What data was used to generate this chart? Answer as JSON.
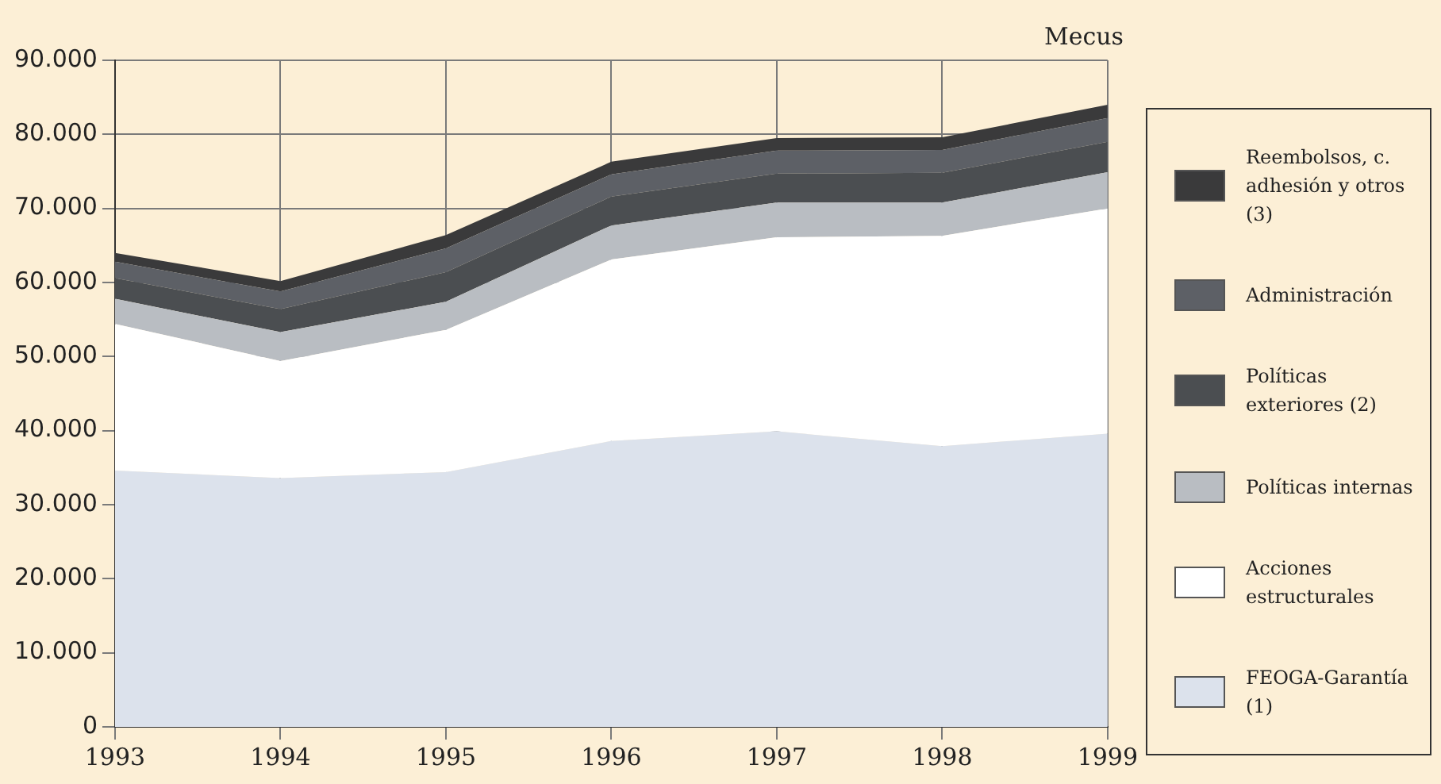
{
  "chart_data": {
    "type": "area",
    "stacked": true,
    "ylabel": "Mecus",
    "categories": [
      "1993",
      "1994",
      "1995",
      "1996",
      "1997",
      "1998",
      "1999"
    ],
    "series": [
      {
        "name": "FEOGA-Garantía (1)",
        "color": "#dce2ec",
        "values": [
          34600,
          33600,
          34400,
          38600,
          39900,
          37900,
          39600
        ]
      },
      {
        "name": "Acciones estructurales",
        "color": "#ffffff",
        "values": [
          19800,
          15800,
          19200,
          24500,
          26200,
          28400,
          30400
        ]
      },
      {
        "name": "Políticas internas",
        "color": "#b9bdc2",
        "values": [
          3400,
          3900,
          3800,
          4600,
          4700,
          4500,
          4900
        ]
      },
      {
        "name": "Políticas exteriores (2)",
        "color": "#4b4e51",
        "values": [
          2800,
          3100,
          4000,
          3900,
          3900,
          4000,
          4100
        ]
      },
      {
        "name": "Administración",
        "color": "#5d6066",
        "values": [
          2200,
          2400,
          3200,
          3000,
          3100,
          3100,
          3200
        ]
      },
      {
        "name": "Reembolsos, c. adhesión y otros (3)",
        "color": "#3a3a3b",
        "values": [
          1200,
          1400,
          1800,
          1700,
          1700,
          1700,
          1800
        ]
      }
    ],
    "ylim": [
      0,
      90000
    ],
    "yticks": [
      0,
      {
        "value": 10000,
        "label": "10.000"
      },
      {
        "value": 20000,
        "label": "20.000"
      },
      {
        "value": 30000,
        "label": "30.000"
      },
      {
        "value": 40000,
        "label": "40.000"
      },
      {
        "value": 50000,
        "label": "50.000"
      },
      {
        "value": 60000,
        "label": "60.000"
      },
      {
        "value": 70000,
        "label": "70.000"
      },
      {
        "value": 80000,
        "label": "80.000"
      },
      {
        "value": 90000,
        "label": "90.000"
      }
    ],
    "grid": true,
    "legend": "right"
  }
}
